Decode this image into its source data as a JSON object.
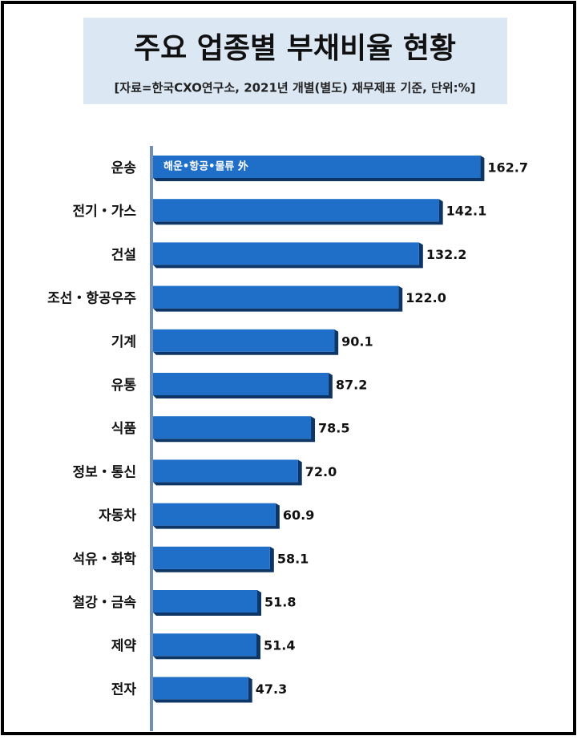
{
  "chart_data": {
    "type": "barh",
    "title": "주요 업종별 부채비율 현황",
    "subtitle": "[자료=한국CXO연구소, 2021년 개별(별도) 재무제표 기준, 단위:%]",
    "annotation": "해운•항공•물류 外",
    "categories": [
      "운송",
      "전기・가스",
      "건설",
      "조선・항공우주",
      "기계",
      "유통",
      "식품",
      "정보・통신",
      "자동차",
      "석유・화학",
      "철강・금속",
      "제약",
      "전자"
    ],
    "values": [
      162.7,
      142.1,
      132.2,
      122.0,
      90.1,
      87.2,
      78.5,
      72.0,
      60.9,
      58.1,
      51.8,
      51.4,
      47.3
    ],
    "value_labels": [
      "162.7",
      "142.1",
      "132.2",
      "122.0",
      "90.1",
      "87.2",
      "78.5",
      "72.0",
      "60.9",
      "58.1",
      "51.8",
      "51.4",
      "47.3"
    ],
    "color": "#1f6fc9",
    "xlim": [
      0,
      200
    ]
  }
}
